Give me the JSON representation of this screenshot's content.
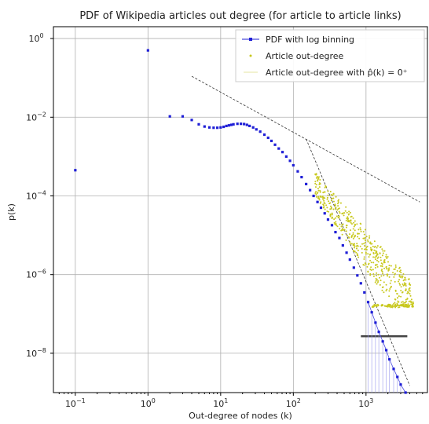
{
  "chart_data": {
    "type": "scatter",
    "title": "PDF of Wikipedia articles out degree (for article to article links)",
    "xlabel": "Out-degree of nodes (k)",
    "ylabel": "p(k)",
    "xscale": "log",
    "yscale": "log",
    "xlim": [
      0.05,
      7000
    ],
    "ylim": [
      1e-09,
      2
    ],
    "grid": true,
    "legend_position": "top-right",
    "x_ticks": [
      {
        "value": 0.1,
        "base": "10",
        "exp": "−1"
      },
      {
        "value": 1,
        "base": "10",
        "exp": "0"
      },
      {
        "value": 10,
        "base": "10",
        "exp": "1"
      },
      {
        "value": 100,
        "base": "10",
        "exp": "2"
      },
      {
        "value": 1000,
        "base": "10",
        "exp": "3"
      }
    ],
    "y_ticks": [
      {
        "value": 1e-08,
        "base": "10",
        "exp": "−8"
      },
      {
        "value": 1e-06,
        "base": "10",
        "exp": "−6"
      },
      {
        "value": 0.0001,
        "base": "10",
        "exp": "−4"
      },
      {
        "value": 0.01,
        "base": "10",
        "exp": "−2"
      },
      {
        "value": 1,
        "base": "10",
        "exp": "0"
      }
    ],
    "series": [
      {
        "name": "PDF with log binning",
        "color": "#1f1fd6",
        "marker": "square",
        "x": [
          0.1,
          1,
          2,
          3,
          4,
          5,
          6,
          7,
          8,
          9,
          10,
          11,
          12,
          13,
          14,
          15,
          17,
          19,
          21,
          23,
          25,
          28,
          31,
          35,
          40,
          45,
          50,
          56,
          63,
          71,
          80,
          90,
          100,
          115,
          130,
          150,
          170,
          190,
          215,
          240,
          270,
          300,
          340,
          380,
          430,
          480,
          540,
          600,
          680,
          760,
          850,
          950,
          1070,
          1200,
          1350,
          1500,
          1700,
          1900,
          2100,
          2400,
          2700,
          3000,
          3500
        ],
        "y": [
          0.00045,
          0.5,
          0.0105,
          0.0105,
          0.0085,
          0.0066,
          0.0058,
          0.0055,
          0.0054,
          0.0054,
          0.0055,
          0.0057,
          0.006,
          0.0062,
          0.0064,
          0.0066,
          0.0068,
          0.0068,
          0.0067,
          0.0064,
          0.006,
          0.0055,
          0.0049,
          0.0043,
          0.0036,
          0.003,
          0.0025,
          0.002,
          0.0016,
          0.0013,
          0.001,
          0.00078,
          0.0006,
          0.00042,
          0.0003,
          0.0002,
          0.00014,
          0.0001,
          7e-05,
          5e-05,
          3.6e-05,
          2.5e-05,
          1.8e-05,
          1.2e-05,
          8.5e-06,
          5.5e-06,
          3.6e-06,
          2.4e-06,
          1.5e-06,
          9.5e-07,
          6e-07,
          3.5e-07,
          2e-07,
          1.1e-07,
          6e-08,
          3.5e-08,
          2e-08,
          1.2e-08,
          7e-09,
          4e-09,
          2.5e-09,
          1.6e-09,
          1e-09
        ]
      },
      {
        "name": "Article out-degree",
        "color": "#c8c81e",
        "marker": "dot",
        "x_range": [
          200,
          4500
        ],
        "y_range": [
          1.5e-07,
          0.0003
        ]
      },
      {
        "name": "Article out-degree with p̂(k) = 0⁺",
        "color": "#c8c81e",
        "marker": "line",
        "x": [
          850,
          3700
        ],
        "y": [
          2.7e-08,
          2.7e-08
        ]
      }
    ],
    "guide_lines": [
      {
        "x": [
          4,
          5500
        ],
        "y": [
          0.11,
          7e-05
        ]
      },
      {
        "x": [
          150,
          4000
        ],
        "y": [
          0.0028,
          1.5e-09
        ]
      }
    ]
  },
  "legend": {
    "items": [
      {
        "label": "PDF with log binning"
      },
      {
        "label": "Article out-degree"
      },
      {
        "label": "Article out-degree with p̂(k) = 0⁺"
      }
    ]
  }
}
